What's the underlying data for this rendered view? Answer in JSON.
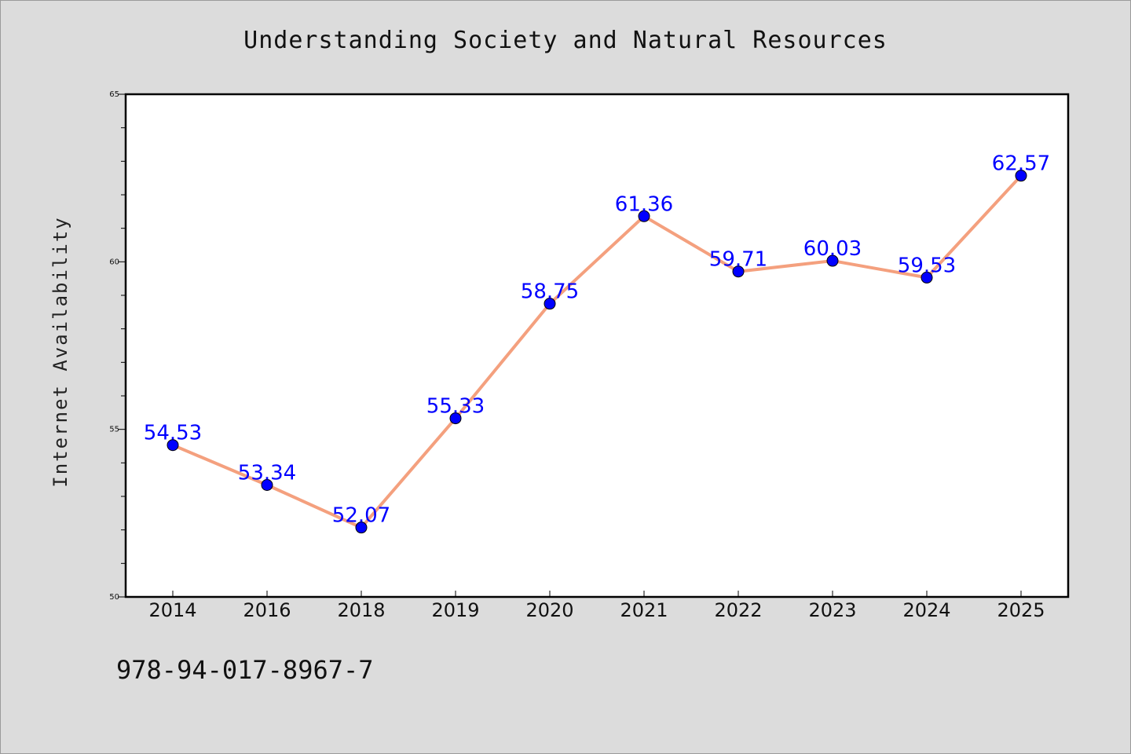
{
  "chart_data": {
    "type": "line",
    "title": "Understanding Society and Natural Resources",
    "xlabel": "",
    "ylabel": "Internet Availability",
    "categories": [
      "2014",
      "2016",
      "2018",
      "2019",
      "2020",
      "2021",
      "2022",
      "2023",
      "2024",
      "2025"
    ],
    "series": [
      {
        "values": [
          54.53,
          53.34,
          52.07,
          55.33,
          58.75,
          61.36,
          59.71,
          60.03,
          59.53,
          62.57
        ],
        "labels": [
          "54.53",
          "53.34",
          "52.07",
          "55.33",
          "58.75",
          "61.36",
          "59.71",
          "60.03",
          "59.53",
          "62.57"
        ],
        "line_color": "#f4a07e",
        "marker_color": "#0000ff"
      }
    ],
    "ylim": [
      50,
      65
    ],
    "yticks": [
      50,
      55,
      60,
      65
    ],
    "ytick_labels": [
      "50",
      "55",
      "60",
      "65"
    ],
    "grid": false,
    "legend": "none"
  },
  "footer": {
    "text": "978-94-017-8967-7"
  },
  "colors": {
    "background": "#dcdcdc",
    "plot_background": "#ffffff"
  }
}
